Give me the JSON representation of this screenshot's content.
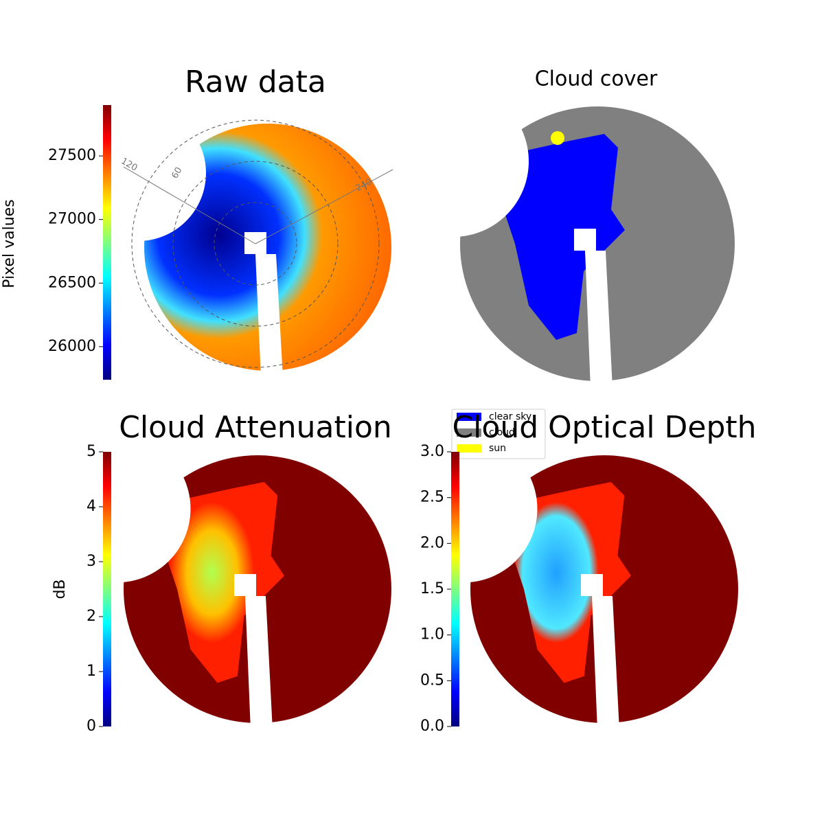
{
  "chart_data": [
    {
      "type": "image",
      "title": "Raw data",
      "colorbar_label": "Pixel values",
      "colormap": "jet",
      "ylim": [
        25740,
        27900
      ],
      "yticks": [
        26000,
        26500,
        27000,
        27500
      ],
      "annotations": [
        "120",
        "60",
        "240"
      ]
    },
    {
      "type": "image",
      "title": "Cloud cover",
      "series": [
        {
          "name": "clear sky",
          "color": "#0000ff"
        },
        {
          "name": "cloud",
          "color": "#808080"
        },
        {
          "name": "sun",
          "color": "#ffff00"
        }
      ]
    },
    {
      "type": "image",
      "title": "Cloud Attenuation",
      "colorbar_label": "dB",
      "colormap": "jet",
      "ylim": [
        0,
        5
      ],
      "yticks": [
        0,
        1,
        2,
        3,
        4,
        5
      ]
    },
    {
      "type": "image",
      "title": "Cloud Optical Depth",
      "colormap": "jet",
      "ylim": [
        0,
        3
      ],
      "yticks": [
        {
          "value": 0,
          "label": "0.0"
        },
        {
          "value": 0.5,
          "label": "0.5"
        },
        {
          "value": 1,
          "label": "1.0"
        },
        {
          "value": 1.5,
          "label": "1.5"
        },
        {
          "value": 2,
          "label": "2.0"
        },
        {
          "value": 2.5,
          "label": "2.5"
        },
        {
          "value": 3,
          "label": "3.0"
        }
      ]
    }
  ]
}
